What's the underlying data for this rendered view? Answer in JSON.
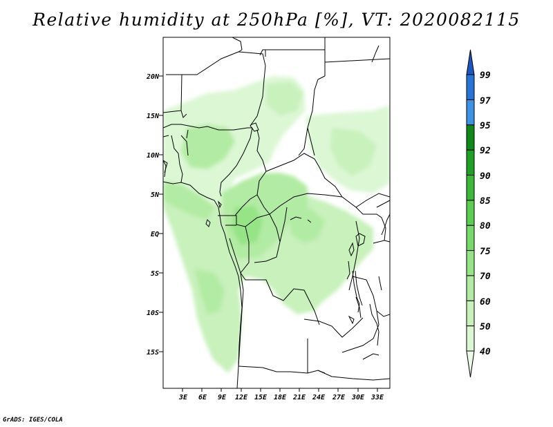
{
  "title": "Relative humidity at 250hPa [%], VT: 2020082115",
  "credit": "GrADS: IGES/COLA",
  "map": {
    "variable": "Relative humidity",
    "level": "250hPa",
    "units": "%",
    "valid_time": "2020082115",
    "lat_labels": [
      "20N",
      "15N",
      "10N",
      "5N",
      "EQ",
      "5S",
      "10S",
      "15S"
    ],
    "lon_labels": [
      "3E",
      "6E",
      "9E",
      "12E",
      "15E",
      "18E",
      "21E",
      "24E",
      "27E",
      "30E",
      "33E"
    ]
  },
  "colorbar": {
    "levels": [
      "40",
      "50",
      "60",
      "70",
      "75",
      "80",
      "85",
      "90",
      "92",
      "95",
      "97",
      "99"
    ],
    "colors": [
      "#ecfbe8",
      "#dcf7d4",
      "#c8f1bc",
      "#b2eba3",
      "#96e486",
      "#78da6a",
      "#5ccd52",
      "#3db83a",
      "#20a024",
      "#11891a",
      "#3d92e6",
      "#2a73d6",
      "#1b57be"
    ]
  }
}
